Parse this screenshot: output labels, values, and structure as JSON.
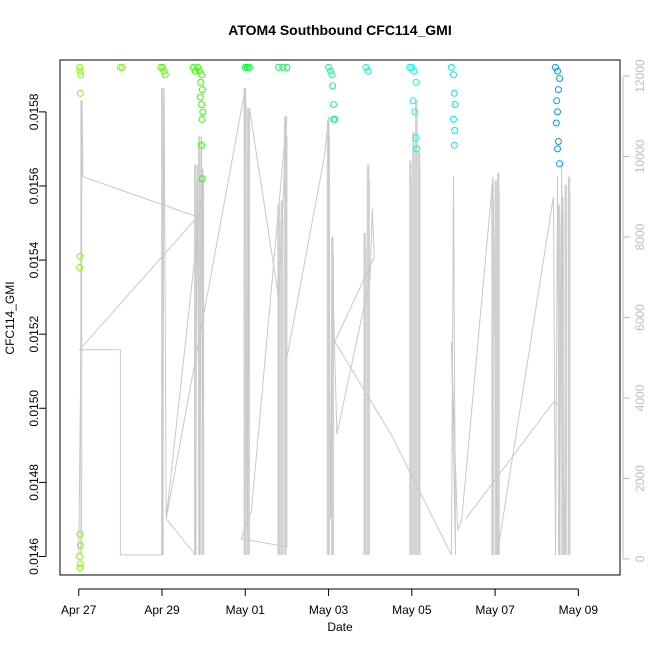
{
  "chart_data": {
    "type": "scatter",
    "title": "ATOM4 Southbound CFC114_GMI",
    "xlabel": "Date",
    "ylabel": "CFC114_GMI",
    "x_ticks": [
      {
        "label": "Apr 27",
        "day": 0
      },
      {
        "label": "Apr 29",
        "day": 2
      },
      {
        "label": "May 01",
        "day": 4
      },
      {
        "label": "May 03",
        "day": 6
      },
      {
        "label": "May 05",
        "day": 8
      },
      {
        "label": "May 07",
        "day": 10
      },
      {
        "label": "May 09",
        "day": 12
      }
    ],
    "xlim": [
      -0.45,
      13.0
    ],
    "ylim": [
      0.01455,
      0.01594
    ],
    "y_ticks": [
      "0.0146",
      "0.0148",
      "0.0150",
      "0.0152",
      "0.0154",
      "0.0156",
      "0.0158"
    ],
    "y_tick_values": [
      0.0146,
      0.0148,
      0.015,
      0.0152,
      0.0154,
      0.0156,
      0.0158
    ],
    "y2label": "",
    "y2lim": [
      -400,
      12400
    ],
    "y2_ticks": [
      "0",
      "2000",
      "4000",
      "6000",
      "8000",
      "10000",
      "12000"
    ],
    "y2_tick_values": [
      0,
      2000,
      4000,
      6000,
      8000,
      10000,
      12000
    ],
    "series": [
      {
        "name": "CFC114_GMI (points, colored by latitude)",
        "points": [
          [
            0.02,
            0.01592,
            "#7fff00"
          ],
          [
            0.03,
            0.01591,
            "#7fff00"
          ],
          [
            0.05,
            0.0159,
            "#7fff00"
          ],
          [
            0.04,
            0.01585,
            "#7fff00"
          ],
          [
            0.03,
            0.01541,
            "#7fff00"
          ],
          [
            0.02,
            0.01538,
            "#7fff00"
          ],
          [
            0.03,
            0.01466,
            "#7fff00"
          ],
          [
            0.04,
            0.01463,
            "#7fff00"
          ],
          [
            0.02,
            0.0146,
            "#7fff00"
          ],
          [
            0.04,
            0.01458,
            "#7fff00"
          ],
          [
            0.03,
            0.01457,
            "#7fff00"
          ],
          [
            1.0,
            0.01592,
            "#73ff00"
          ],
          [
            1.05,
            0.01592,
            "#73ff00"
          ],
          [
            1.97,
            0.01592,
            "#55ff00"
          ],
          [
            2.02,
            0.01592,
            "#55ff00"
          ],
          [
            2.05,
            0.01591,
            "#55ff00"
          ],
          [
            2.08,
            0.0159,
            "#55ff00"
          ],
          [
            2.75,
            0.01592,
            "#35ff00"
          ],
          [
            2.8,
            0.01591,
            "#35ff00"
          ],
          [
            2.86,
            0.01592,
            "#35ff00"
          ],
          [
            2.9,
            0.01591,
            "#35ff00"
          ],
          [
            2.95,
            0.0159,
            "#35ff00"
          ],
          [
            2.93,
            0.01588,
            "#35ff00"
          ],
          [
            2.97,
            0.01586,
            "#35ff00"
          ],
          [
            2.92,
            0.01584,
            "#35ff00"
          ],
          [
            2.95,
            0.01582,
            "#35ff00"
          ],
          [
            2.98,
            0.0158,
            "#35ff00"
          ],
          [
            2.96,
            0.01578,
            "#35ff00"
          ],
          [
            2.95,
            0.01571,
            "#35ff00"
          ],
          [
            2.97,
            0.01562,
            "#35ff00"
          ],
          [
            4.0,
            0.01592,
            "#00ff2a"
          ],
          [
            4.05,
            0.01592,
            "#00ff2a"
          ],
          [
            4.1,
            0.01592,
            "#00ff2a"
          ],
          [
            4.8,
            0.01592,
            "#00ff55"
          ],
          [
            4.9,
            0.01592,
            "#00ff55"
          ],
          [
            5.0,
            0.01592,
            "#00ff55"
          ],
          [
            6.0,
            0.01592,
            "#00ff99"
          ],
          [
            6.05,
            0.01591,
            "#00ff99"
          ],
          [
            6.08,
            0.0159,
            "#00ff99"
          ],
          [
            6.1,
            0.01587,
            "#00ff99"
          ],
          [
            6.12,
            0.01582,
            "#00ff99"
          ],
          [
            6.15,
            0.01578,
            "#00ff99"
          ],
          [
            6.12,
            0.01578,
            "#00ff99"
          ],
          [
            6.9,
            0.01592,
            "#00ffb3"
          ],
          [
            6.95,
            0.01591,
            "#00ffb3"
          ],
          [
            7.95,
            0.01592,
            "#00ffe0"
          ],
          [
            8.0,
            0.01592,
            "#00ffe0"
          ],
          [
            8.05,
            0.01591,
            "#00ffe0"
          ],
          [
            8.1,
            0.01588,
            "#00ffe0"
          ],
          [
            8.03,
            0.01583,
            "#00ffe0"
          ],
          [
            8.07,
            0.0158,
            "#00ffe0"
          ],
          [
            8.1,
            0.01573,
            "#00ffe0"
          ],
          [
            8.12,
            0.0157,
            "#00ffe0"
          ],
          [
            8.95,
            0.01592,
            "#00e5ff"
          ],
          [
            9.0,
            0.0159,
            "#00e5ff"
          ],
          [
            9.02,
            0.01585,
            "#00e5ff"
          ],
          [
            9.04,
            0.01582,
            "#00e5ff"
          ],
          [
            9.0,
            0.01578,
            "#00e5ff"
          ],
          [
            9.03,
            0.01575,
            "#00e5ff"
          ],
          [
            9.02,
            0.01571,
            "#00e5ff"
          ],
          [
            11.45,
            0.01592,
            "#0099ff"
          ],
          [
            11.5,
            0.01591,
            "#0099ff"
          ],
          [
            11.55,
            0.01589,
            "#0099ff"
          ],
          [
            11.52,
            0.01586,
            "#0099ff"
          ],
          [
            11.48,
            0.01583,
            "#0099ff"
          ],
          [
            11.5,
            0.0158,
            "#0099ff"
          ],
          [
            11.47,
            0.01577,
            "#0099ff"
          ],
          [
            11.52,
            0.01572,
            "#0099ff"
          ],
          [
            11.5,
            0.0157,
            "#0099ff"
          ],
          [
            11.55,
            0.01566,
            "#0099ff"
          ]
        ]
      },
      {
        "name": "Altitude (gray line, right axis)",
        "color": "#c8c8c8",
        "points": [
          [
            0.0,
            100
          ],
          [
            0.02,
            2000
          ],
          [
            0.05,
            5000
          ],
          [
            0.08,
            11400
          ],
          [
            0.1,
            9500
          ],
          [
            2.85,
            8500
          ],
          [
            0.02,
            5200
          ],
          [
            1.0,
            5200
          ],
          [
            1.0,
            100
          ],
          [
            2.0,
            100
          ],
          [
            2.05,
            11700
          ],
          [
            2.1,
            1000
          ],
          [
            2.8,
            100
          ],
          [
            2.85,
            9800
          ],
          [
            2.9,
            100
          ],
          [
            2.95,
            10500
          ],
          [
            3.0,
            100
          ],
          [
            3.0,
            9500
          ],
          [
            2.1,
            1000
          ],
          [
            4.0,
            11700
          ],
          [
            4.05,
            700
          ],
          [
            4.1,
            11200
          ],
          [
            4.8,
            6500
          ],
          [
            5.0,
            11000
          ],
          [
            4.15,
            1200
          ],
          [
            3.9,
            500
          ],
          [
            5.0,
            300
          ],
          [
            5.0,
            10500
          ],
          [
            5.0,
            5000
          ],
          [
            5.9,
            10000
          ],
          [
            6.0,
            11000
          ],
          [
            6.05,
            1000
          ],
          [
            6.1,
            7000
          ],
          [
            6.2,
            3100
          ],
          [
            7.0,
            7000
          ],
          [
            7.05,
            8700
          ],
          [
            7.1,
            7500
          ],
          [
            6.15,
            5400
          ],
          [
            7.5,
            3100
          ],
          [
            8.95,
            100
          ],
          [
            9.0,
            9500
          ],
          [
            9.05,
            100
          ],
          [
            8.95,
            5400
          ],
          [
            9.1,
            700
          ],
          [
            9.2,
            1000
          ],
          [
            9.95,
            9500
          ],
          [
            10.05,
            100
          ],
          [
            11.4,
            9000
          ],
          [
            11.45,
            100
          ],
          [
            11.5,
            9500
          ],
          [
            11.55,
            100
          ],
          [
            11.6,
            9800
          ],
          [
            11.65,
            100
          ],
          [
            11.7,
            3700
          ],
          [
            11.4,
            3900
          ],
          [
            9.3,
            1000
          ]
        ]
      }
    ],
    "bars": {
      "name": "Altitude profiles (gray vertical bars, right axis)",
      "color": "#d0d0d0",
      "groups": [
        [
          0.05,
          0.07,
          100,
          11400
        ],
        [
          1.99,
          2.03,
          100,
          11700
        ],
        [
          2.78,
          2.82,
          100,
          9800
        ],
        [
          2.88,
          2.92,
          100,
          10500
        ],
        [
          2.96,
          2.99,
          100,
          9700
        ],
        [
          3.97,
          4.02,
          100,
          11700
        ],
        [
          4.05,
          4.1,
          100,
          11200
        ],
        [
          4.78,
          4.83,
          100,
          8800
        ],
        [
          4.86,
          4.9,
          100,
          8900
        ],
        [
          4.94,
          4.98,
          100,
          11000
        ],
        [
          5.97,
          6.02,
          100,
          10900
        ],
        [
          6.07,
          6.12,
          100,
          8000
        ],
        [
          6.85,
          6.9,
          100,
          8100
        ],
        [
          6.93,
          6.98,
          100,
          9800
        ],
        [
          7.95,
          7.99,
          100,
          9900
        ],
        [
          8.02,
          8.06,
          100,
          10600
        ],
        [
          8.09,
          8.13,
          100,
          11400
        ],
        [
          8.16,
          8.2,
          100,
          10100
        ],
        [
          9.92,
          9.96,
          100,
          9300
        ],
        [
          10.0,
          10.04,
          100,
          9400
        ],
        [
          10.06,
          10.1,
          100,
          9600
        ],
        [
          11.52,
          11.56,
          100,
          8800
        ],
        [
          11.6,
          11.64,
          100,
          9000
        ],
        [
          11.68,
          11.72,
          100,
          9300
        ],
        [
          11.76,
          11.8,
          100,
          9500
        ]
      ]
    }
  }
}
